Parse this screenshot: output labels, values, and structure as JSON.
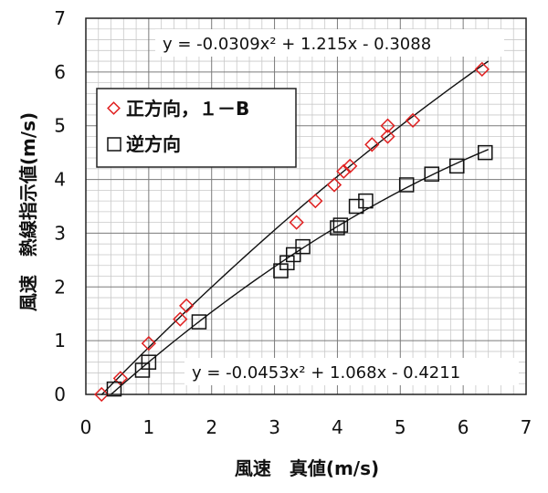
{
  "chart_data": {
    "type": "scatter",
    "title": "",
    "xlabel": "風速　真値(m/s)",
    "ylabel": "風速　熱線指示値(m/s)",
    "xlim": [
      0,
      7
    ],
    "ylim": [
      0,
      7
    ],
    "xticks": [
      "0",
      "1",
      "2",
      "3",
      "4",
      "5",
      "6",
      "7"
    ],
    "yticks": [
      "0",
      "1",
      "2",
      "3",
      "4",
      "5",
      "6",
      "7"
    ],
    "grid": true,
    "legend_position": "upper-left",
    "series": [
      {
        "name": "正方向，１－B",
        "marker": "diamond",
        "color": "#e02020",
        "points": [
          [
            0.25,
            0.0
          ],
          [
            0.55,
            0.3
          ],
          [
            1.0,
            0.95
          ],
          [
            1.5,
            1.4
          ],
          [
            1.6,
            1.65
          ],
          [
            3.35,
            3.2
          ],
          [
            3.65,
            3.6
          ],
          [
            3.95,
            3.9
          ],
          [
            4.1,
            4.15
          ],
          [
            4.2,
            4.25
          ],
          [
            4.55,
            4.65
          ],
          [
            4.8,
            4.8
          ],
          [
            4.8,
            5.0
          ],
          [
            5.2,
            5.1
          ],
          [
            6.3,
            6.05
          ]
        ],
        "fit": {
          "a": -0.0309,
          "b": 1.215,
          "c": -0.3088,
          "x_range": [
            0.25,
            6.4
          ]
        },
        "equation": "y = -0.0309x² + 1.215x - 0.3088"
      },
      {
        "name": "逆方向",
        "marker": "square",
        "color": "#111111",
        "points": [
          [
            0.45,
            0.1
          ],
          [
            0.9,
            0.45
          ],
          [
            1.0,
            0.6
          ],
          [
            1.8,
            1.35
          ],
          [
            3.1,
            2.3
          ],
          [
            3.2,
            2.45
          ],
          [
            3.3,
            2.6
          ],
          [
            3.45,
            2.75
          ],
          [
            4.0,
            3.1
          ],
          [
            4.05,
            3.15
          ],
          [
            4.3,
            3.5
          ],
          [
            4.45,
            3.6
          ],
          [
            5.1,
            3.9
          ],
          [
            5.5,
            4.1
          ],
          [
            5.9,
            4.25
          ],
          [
            6.35,
            4.5
          ]
        ],
        "fit": {
          "a": -0.0453,
          "b": 1.068,
          "c": -0.4211,
          "x_range": [
            0.4,
            6.4
          ]
        },
        "equation": "y = -0.0453x² + 1.068x - 0.4211"
      }
    ]
  }
}
